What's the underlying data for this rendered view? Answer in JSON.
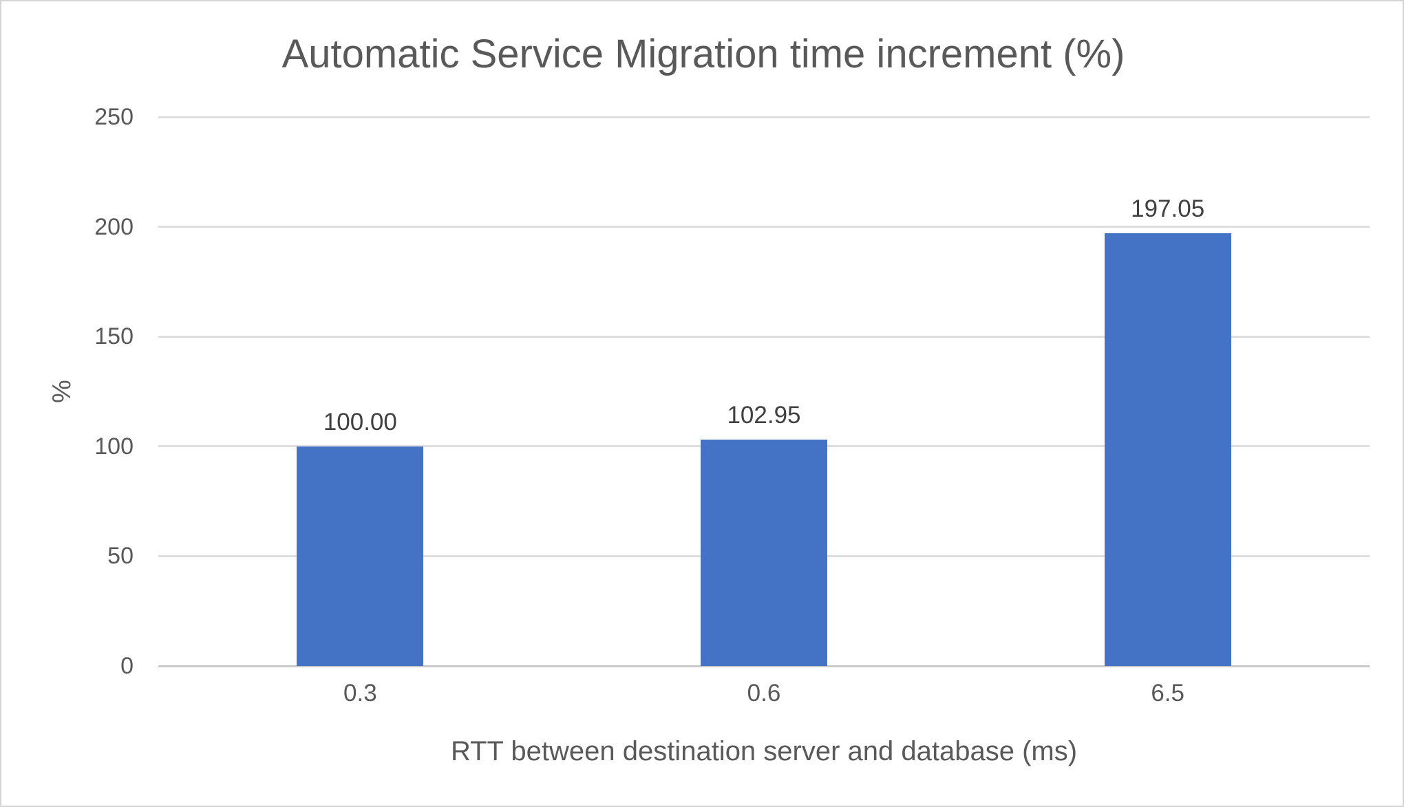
{
  "chart_data": {
    "type": "bar",
    "title": "Automatic Service Migration time increment (%)",
    "xlabel": "RTT between destination server and database (ms)",
    "ylabel": "%",
    "categories": [
      "0.3",
      "0.6",
      "6.5"
    ],
    "values": [
      100.0,
      102.95,
      197.05
    ],
    "data_labels": [
      "100.00",
      "102.95",
      "197.05"
    ],
    "y_ticks": [
      "0",
      "50",
      "100",
      "150",
      "200",
      "250"
    ],
    "ylim": [
      0,
      250
    ],
    "grid": "horizontal-only",
    "legend": "none",
    "bar_color": "#4472C4"
  },
  "colors": {
    "bar": "#4472C4",
    "gridline": "#DEDEDE",
    "axis_baseline": "#C9C9C9",
    "axis_text": "#595959",
    "data_label_text": "#404040",
    "title_text": "#595959",
    "frame_border": "#D4D4D4",
    "background": "#FFFFFF"
  }
}
